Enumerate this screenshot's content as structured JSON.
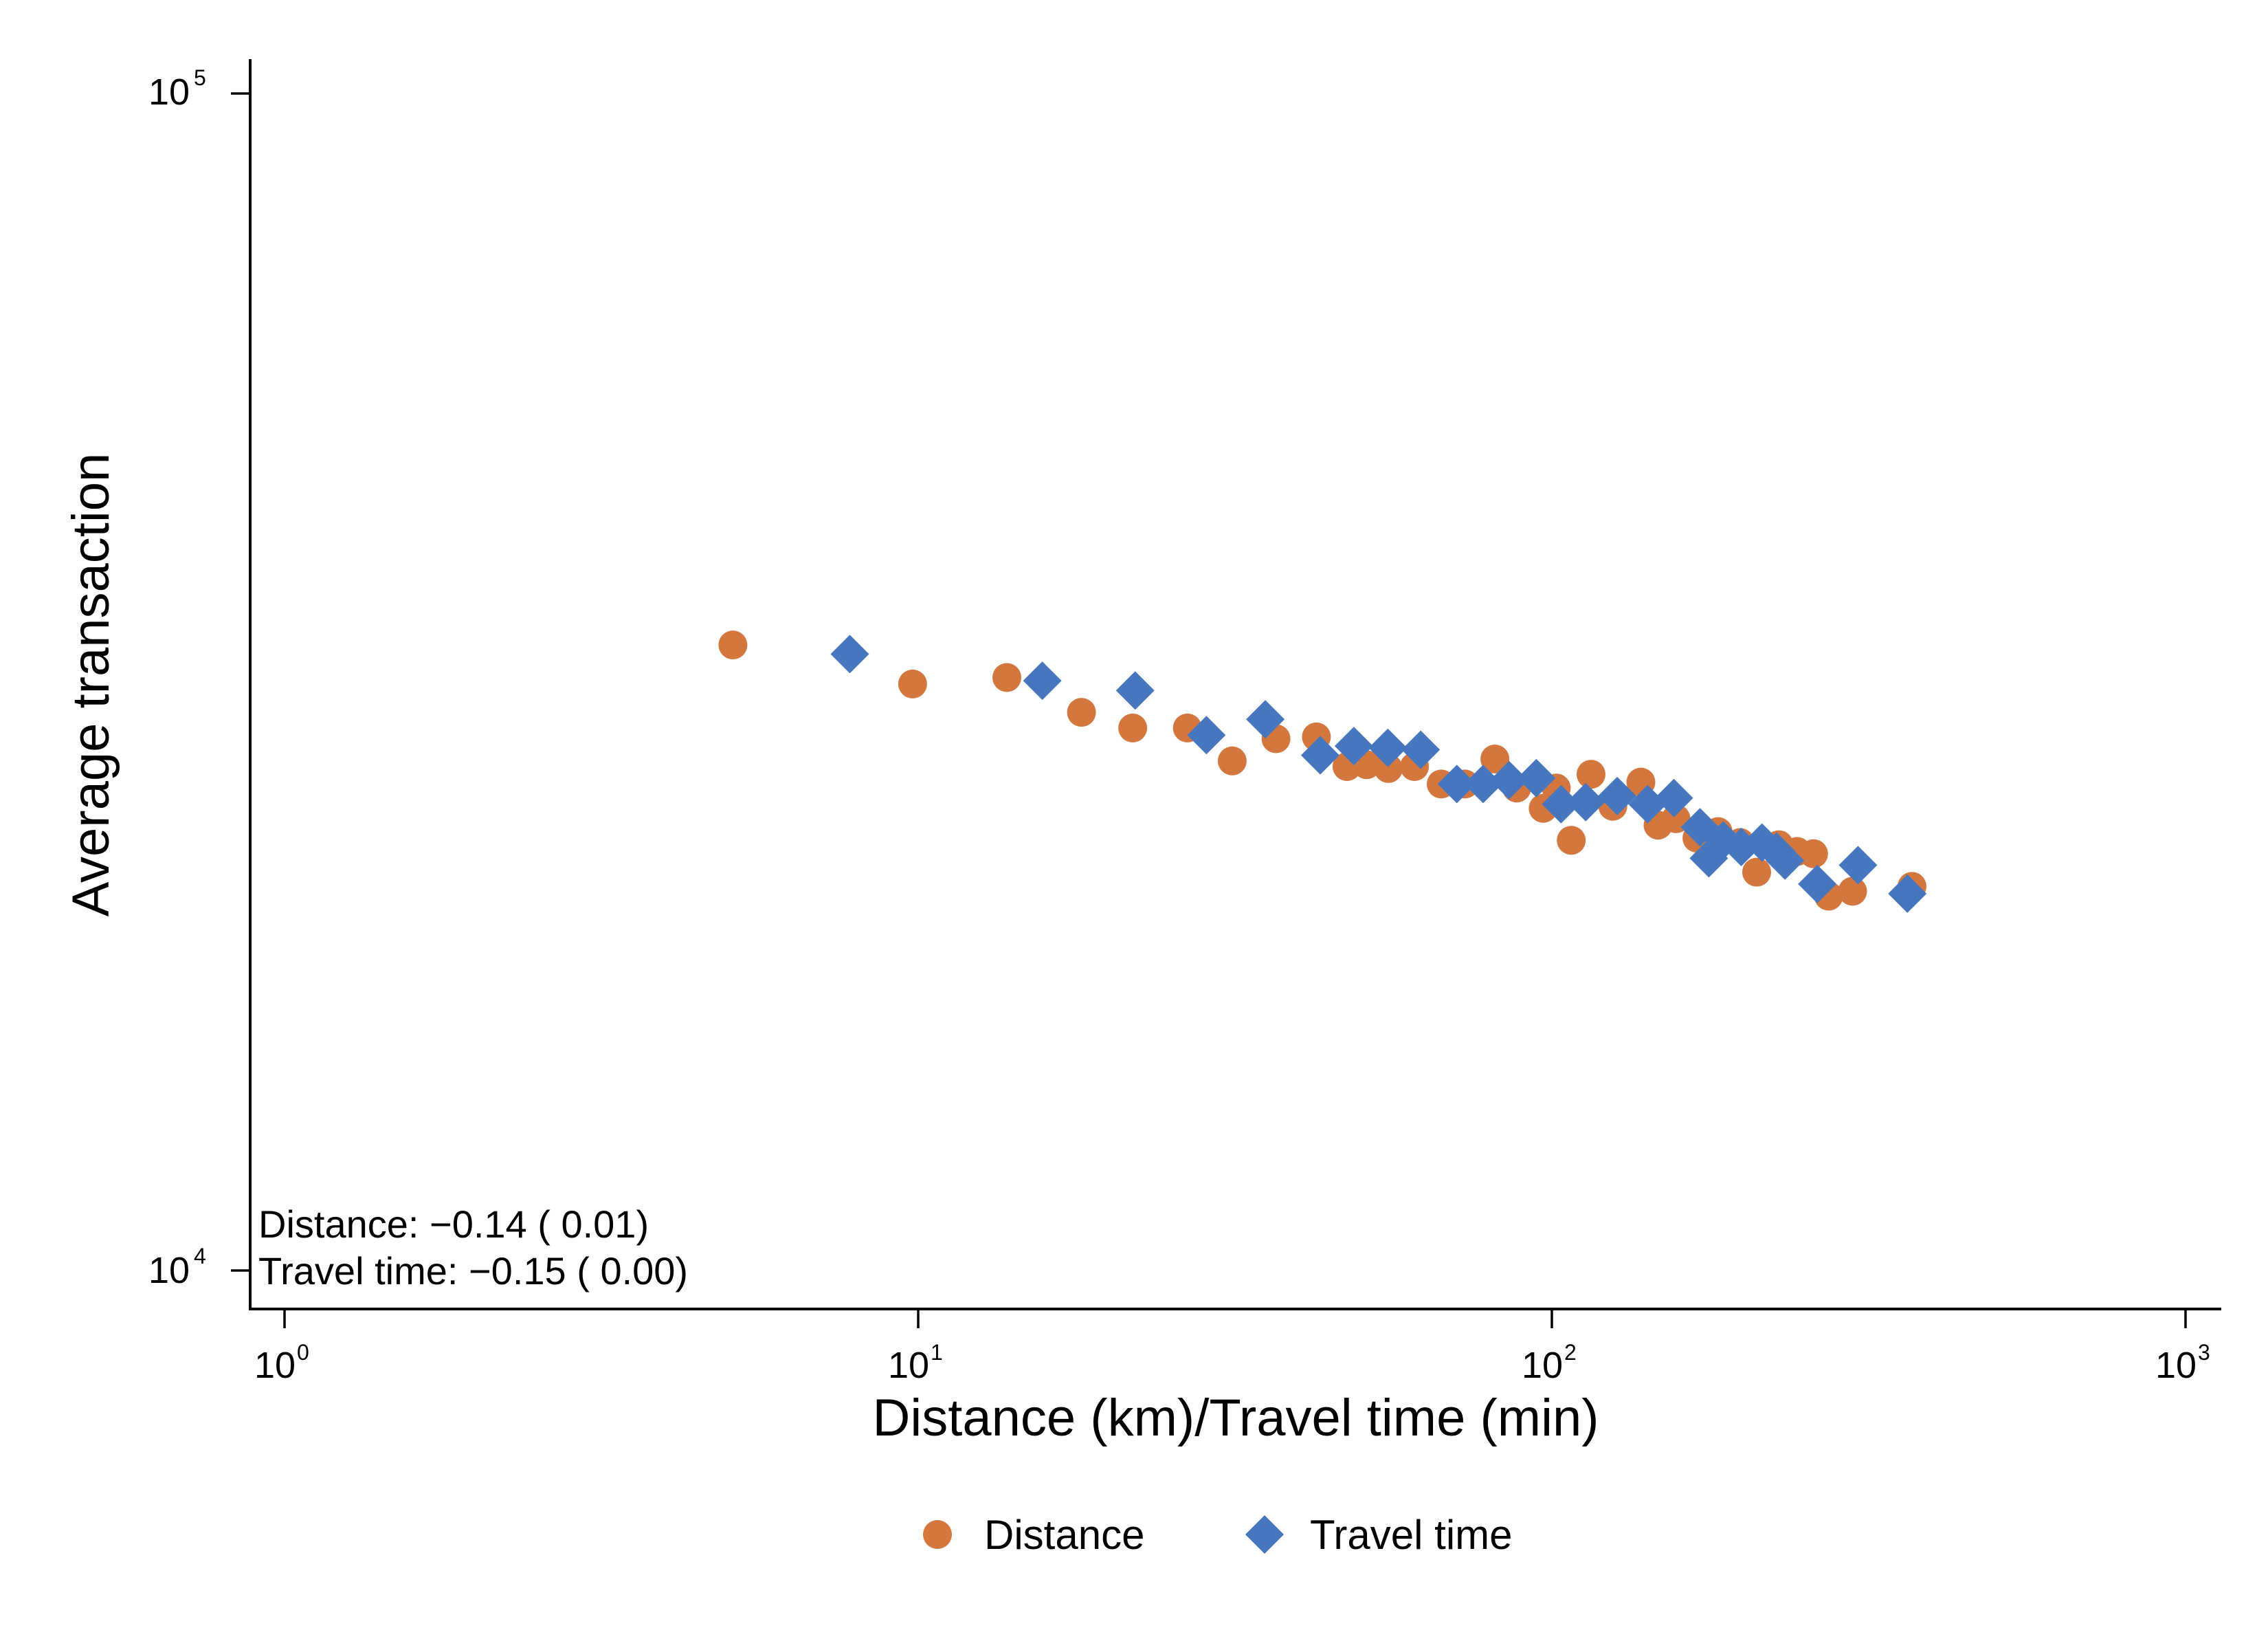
{
  "colors": {
    "distance": "#d4773f",
    "travel_time": "#4677be",
    "axis": "#000000"
  },
  "chart_data": {
    "type": "scatter",
    "xlabel": "Distance (km)/Travel time (min)",
    "ylabel": "Average transaction",
    "xscale": "log",
    "yscale": "log",
    "xlim": [
      0.95,
      1150
    ],
    "ylim": [
      9500,
      105000
    ],
    "xticks": [
      {
        "base": "10",
        "exp": "0",
        "value": 1
      },
      {
        "base": "10",
        "exp": "1",
        "value": 10
      },
      {
        "base": "10",
        "exp": "2",
        "value": 100
      },
      {
        "base": "10",
        "exp": "3",
        "value": 1000
      }
    ],
    "yticks": [
      {
        "base": "10",
        "exp": "4",
        "value": 10000
      },
      {
        "base": "10",
        "exp": "5",
        "value": 100000
      }
    ],
    "grid": false,
    "legend": "bottom-center",
    "annotations": [
      "Distance: −0.14 ( 0.01)",
      "Travel time: −0.15 ( 0.00)"
    ],
    "series": [
      {
        "name": "Distance",
        "marker": "circle",
        "points": [
          [
            5.1,
            34000
          ],
          [
            9.8,
            31500
          ],
          [
            13.8,
            31900
          ],
          [
            18.1,
            29800
          ],
          [
            21.8,
            28900
          ],
          [
            26.6,
            28900
          ],
          [
            31.3,
            27100
          ],
          [
            36.7,
            28300
          ],
          [
            42.5,
            28400
          ],
          [
            47.5,
            26800
          ],
          [
            51.0,
            26900
          ],
          [
            55.2,
            26700
          ],
          [
            60.7,
            26800
          ],
          [
            66.9,
            25900
          ],
          [
            72.9,
            25900
          ],
          [
            81.3,
            27200
          ],
          [
            88.0,
            25700
          ],
          [
            96.9,
            24700
          ],
          [
            101.6,
            25700
          ],
          [
            107.3,
            23200
          ],
          [
            115.3,
            26400
          ],
          [
            124.8,
            24800
          ],
          [
            138.2,
            26000
          ],
          [
            147.1,
            23900
          ],
          [
            157.0,
            24200
          ],
          [
            169.4,
            23300
          ],
          [
            182.9,
            23600
          ],
          [
            198.2,
            23100
          ],
          [
            210.5,
            21800
          ],
          [
            228.2,
            23000
          ],
          [
            243.8,
            22700
          ],
          [
            258.8,
            22600
          ],
          [
            273.4,
            20800
          ],
          [
            298.2,
            21000
          ],
          [
            370.1,
            21200
          ]
        ]
      },
      {
        "name": "Travel time",
        "marker": "diamond",
        "points": [
          [
            7.8,
            33400
          ],
          [
            15.7,
            31700
          ],
          [
            22.0,
            31100
          ],
          [
            28.5,
            28500
          ],
          [
            35.3,
            29400
          ],
          [
            43.1,
            27400
          ],
          [
            48.7,
            27900
          ],
          [
            55.1,
            27800
          ],
          [
            62.1,
            27700
          ],
          [
            70.8,
            25900
          ],
          [
            77.9,
            25900
          ],
          [
            85.6,
            26100
          ],
          [
            94.5,
            26200
          ],
          [
            103.4,
            24900
          ],
          [
            113.1,
            25000
          ],
          [
            126.8,
            25300
          ],
          [
            141.6,
            24900
          ],
          [
            155.8,
            25200
          ],
          [
            171.3,
            23800
          ],
          [
            176.9,
            22400
          ],
          [
            186.4,
            23200
          ],
          [
            199.0,
            22900
          ],
          [
            214.6,
            23100
          ],
          [
            226.2,
            22700
          ],
          [
            233.3,
            22300
          ],
          [
            262.3,
            21300
          ],
          [
            304.2,
            22100
          ],
          [
            363.9,
            20900
          ]
        ]
      }
    ]
  }
}
